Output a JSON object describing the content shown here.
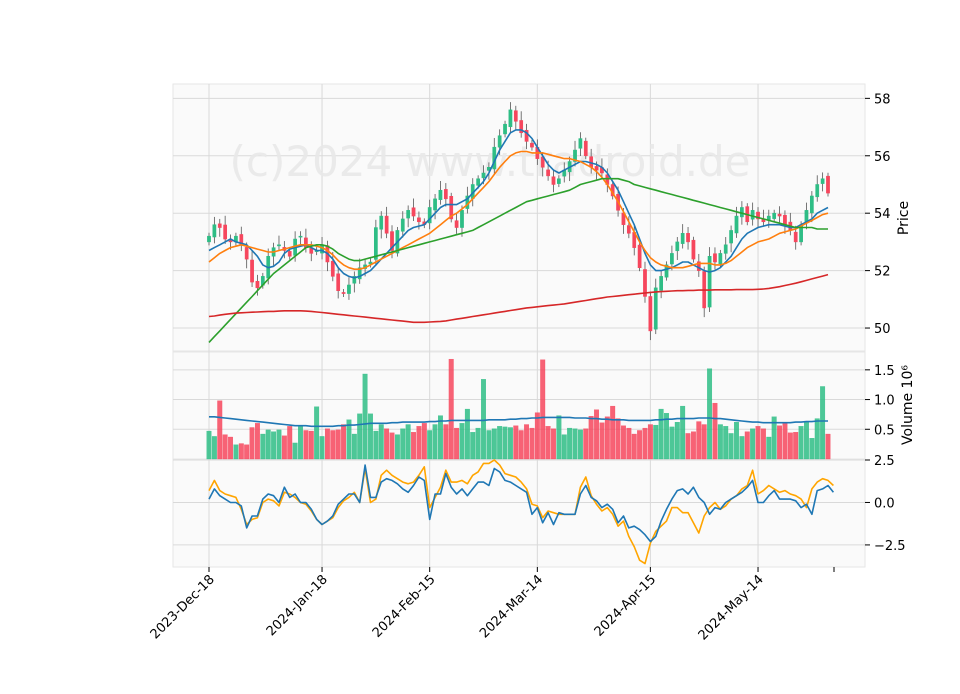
{
  "watermark": "(c)2024 www.tradroid.de",
  "colors": {
    "up": "#26a69a",
    "up_candle": "#2ebd85",
    "down": "#ef5350",
    "down_candle": "#f6465d",
    "sma_short": "#1f77b4",
    "sma_mid": "#ff7f0e",
    "sma_long": "#2ca02c",
    "sma_200": "#d62728",
    "macd": "#1f77b4",
    "signal": "#ffa500",
    "vol_ma": "#1f77b4"
  },
  "chart_data": [
    {
      "type": "candlestick",
      "panel": "price",
      "ylabel": "Price",
      "ylim": [
        49.2,
        58.5
      ],
      "yticks": [
        "50",
        "52",
        "54",
        "56",
        "58"
      ],
      "grid": true,
      "x_tick_labels": [
        "2023-Dec-18",
        "2024-Jan-18",
        "2024-Feb-15",
        "2024-Mar-14",
        "2024-Apr-15",
        "2024-May-14"
      ],
      "x_tick_index": [
        0,
        21,
        41,
        61,
        82,
        102
      ],
      "closes": [
        53.2,
        53.6,
        53.5,
        53.1,
        53.0,
        53.2,
        52.9,
        52.4,
        51.6,
        51.4,
        51.8,
        52.5,
        52.8,
        52.9,
        52.7,
        52.5,
        53.1,
        53.2,
        52.8,
        52.6,
        52.7,
        52.9,
        52.3,
        51.8,
        51.3,
        51.2,
        51.5,
        51.8,
        52.1,
        52.2,
        52.3,
        53.5,
        53.9,
        53.3,
        52.7,
        53.4,
        53.8,
        54.1,
        53.9,
        53.7,
        53.6,
        54.2,
        54.5,
        54.8,
        54.5,
        53.8,
        53.5,
        54.1,
        54.6,
        55.0,
        55.2,
        55.4,
        55.6,
        56.3,
        56.7,
        57.1,
        57.6,
        57.2,
        56.8,
        56.5,
        56.3,
        55.9,
        55.6,
        55.3,
        55.0,
        55.2,
        55.5,
        55.8,
        56.2,
        56.6,
        56.0,
        55.6,
        55.5,
        55.4,
        55.0,
        54.6,
        54.1,
        53.6,
        53.3,
        52.8,
        52.1,
        51.1,
        49.9,
        51.4,
        51.8,
        52.2,
        52.6,
        53.0,
        53.3,
        53.0,
        52.4,
        52.0,
        50.7,
        52.5,
        52.3,
        52.6,
        52.9,
        53.4,
        53.9,
        54.2,
        53.7,
        54.1,
        53.8,
        53.7,
        53.9,
        54.0,
        53.9,
        53.6,
        53.4,
        53.0,
        53.6,
        54.1,
        54.6,
        55.0,
        55.2,
        54.7
      ],
      "series": [
        {
          "name": "",
          "values": [
            52.7,
            52.8,
            52.9,
            53.0,
            53.1,
            53.0,
            52.95,
            52.9,
            52.7,
            52.5,
            52.2,
            52.1,
            52.15,
            52.3,
            52.6,
            52.75,
            52.8,
            52.85,
            52.9,
            52.8,
            52.7,
            52.7,
            52.6,
            52.4,
            52.1,
            51.9,
            51.8,
            51.75,
            51.8,
            51.9,
            52.0,
            52.2,
            52.4,
            52.6,
            52.8,
            53.0,
            53.2,
            53.4,
            53.5,
            53.55,
            53.6,
            53.8,
            54.0,
            54.2,
            54.3,
            54.3,
            54.3,
            54.4,
            54.5,
            54.7,
            54.9,
            55.1,
            55.4,
            55.8,
            56.2,
            56.5,
            56.8,
            56.9,
            56.9,
            56.8,
            56.6,
            56.3,
            56.0,
            55.7,
            55.5,
            55.4,
            55.5,
            55.6,
            55.7,
            55.8,
            55.8,
            55.75,
            55.7,
            55.6,
            55.4,
            55.1,
            54.8,
            54.4,
            54.0,
            53.6,
            53.1,
            52.6,
            52.2,
            52.0,
            52.0,
            52.05,
            52.1,
            52.2,
            52.3,
            52.3,
            52.2,
            52.1,
            52.0,
            51.95,
            52.0,
            52.1,
            52.3,
            52.5,
            52.8,
            53.1,
            53.3,
            53.4,
            53.5,
            53.55,
            53.6,
            53.6,
            53.6,
            53.55,
            53.5,
            53.5,
            53.6,
            53.7,
            53.8,
            54.0,
            54.1,
            54.2
          ]
        },
        {
          "name": "",
          "values": [
            52.3,
            52.45,
            52.6,
            52.7,
            52.8,
            52.85,
            52.9,
            52.85,
            52.8,
            52.75,
            52.7,
            52.65,
            52.65,
            52.7,
            52.75,
            52.8,
            52.85,
            52.9,
            52.9,
            52.9,
            52.85,
            52.8,
            52.7,
            52.55,
            52.35,
            52.2,
            52.1,
            52.05,
            52.05,
            52.1,
            52.2,
            52.3,
            52.4,
            52.5,
            52.6,
            52.7,
            52.8,
            52.9,
            53.0,
            53.1,
            53.2,
            53.3,
            53.45,
            53.6,
            53.75,
            53.9,
            54.0,
            54.15,
            54.3,
            54.5,
            54.7,
            54.9,
            55.1,
            55.35,
            55.6,
            55.8,
            56.0,
            56.1,
            56.15,
            56.15,
            56.1,
            56.1,
            56.1,
            56.05,
            56.0,
            55.95,
            55.9,
            55.9,
            55.85,
            55.8,
            55.7,
            55.6,
            55.45,
            55.25,
            55.0,
            54.7,
            54.4,
            54.05,
            53.7,
            53.35,
            53.0,
            52.7,
            52.45,
            52.3,
            52.2,
            52.15,
            52.1,
            52.1,
            52.1,
            52.15,
            52.2,
            52.25,
            52.25,
            52.25,
            52.2,
            52.2,
            52.25,
            52.35,
            52.5,
            52.65,
            52.8,
            52.9,
            53.0,
            53.05,
            53.1,
            53.2,
            53.3,
            53.35,
            53.4,
            53.45,
            53.55,
            53.65,
            53.75,
            53.85,
            53.95,
            54.0
          ]
        },
        {
          "name": "",
          "values": [
            49.5,
            49.7,
            49.9,
            50.1,
            50.3,
            50.5,
            50.7,
            50.9,
            51.1,
            51.3,
            51.5,
            51.7,
            51.9,
            52.05,
            52.2,
            52.35,
            52.5,
            52.65,
            52.8,
            52.85,
            52.9,
            52.9,
            52.85,
            52.75,
            52.6,
            52.5,
            52.4,
            52.35,
            52.35,
            52.4,
            52.45,
            52.5,
            52.55,
            52.6,
            52.65,
            52.7,
            52.75,
            52.8,
            52.85,
            52.9,
            52.95,
            53.0,
            53.05,
            53.1,
            53.15,
            53.2,
            53.25,
            53.3,
            53.35,
            53.4,
            53.5,
            53.6,
            53.7,
            53.8,
            53.9,
            54.0,
            54.1,
            54.2,
            54.3,
            54.4,
            54.45,
            54.5,
            54.55,
            54.6,
            54.65,
            54.7,
            54.75,
            54.8,
            54.9,
            55.0,
            55.05,
            55.1,
            55.15,
            55.2,
            55.2,
            55.2,
            55.2,
            55.15,
            55.1,
            55.0,
            54.95,
            54.9,
            54.85,
            54.8,
            54.75,
            54.7,
            54.65,
            54.6,
            54.55,
            54.5,
            54.45,
            54.4,
            54.35,
            54.3,
            54.25,
            54.2,
            54.15,
            54.1,
            54.05,
            54.0,
            53.95,
            53.9,
            53.85,
            53.8,
            53.75,
            53.7,
            53.65,
            53.6,
            53.55,
            53.5,
            53.5,
            53.5,
            53.5,
            53.45,
            53.45,
            53.45
          ]
        },
        {
          "name": "",
          "values": [
            50.4,
            50.42,
            50.45,
            50.48,
            50.5,
            50.52,
            50.53,
            50.54,
            50.55,
            50.56,
            50.57,
            50.58,
            50.58,
            50.59,
            50.6,
            50.6,
            50.6,
            50.6,
            50.59,
            50.58,
            50.56,
            50.54,
            50.52,
            50.5,
            50.48,
            50.46,
            50.44,
            50.42,
            50.4,
            50.38,
            50.36,
            50.34,
            50.32,
            50.3,
            50.28,
            50.26,
            50.24,
            50.22,
            50.2,
            50.2,
            50.2,
            50.21,
            50.22,
            50.23,
            50.25,
            50.28,
            50.31,
            50.34,
            50.37,
            50.4,
            50.43,
            50.46,
            50.49,
            50.52,
            50.55,
            50.58,
            50.61,
            50.64,
            50.67,
            50.7,
            50.72,
            50.74,
            50.76,
            50.78,
            50.8,
            50.82,
            50.84,
            50.87,
            50.9,
            50.93,
            50.96,
            50.99,
            51.02,
            51.05,
            51.08,
            51.1,
            51.12,
            51.14,
            51.16,
            51.18,
            51.2,
            51.22,
            51.24,
            51.26,
            51.27,
            51.28,
            51.29,
            51.3,
            51.3,
            51.31,
            51.31,
            51.32,
            51.32,
            51.32,
            51.33,
            51.33,
            51.33,
            51.33,
            51.34,
            51.34,
            51.34,
            51.34,
            51.35,
            51.36,
            51.38,
            51.41,
            51.44,
            51.48,
            51.52,
            51.56,
            51.61,
            51.66,
            51.71,
            51.76,
            51.81,
            51.86
          ]
        }
      ]
    },
    {
      "type": "bar",
      "panel": "volume",
      "ylabel": "Volume  10⁶",
      "ylim": [
        0,
        1.8
      ],
      "yticks": [
        "0.5",
        "1.0",
        "1.5"
      ],
      "grid": true,
      "values": [
        0.47,
        0.38,
        0.98,
        0.41,
        0.37,
        0.24,
        0.26,
        0.24,
        0.53,
        0.6,
        0.42,
        0.49,
        0.46,
        0.49,
        0.39,
        0.55,
        0.27,
        0.55,
        0.48,
        0.47,
        0.88,
        0.38,
        0.51,
        0.48,
        0.49,
        0.58,
        0.66,
        0.42,
        0.76,
        1.43,
        0.76,
        0.47,
        0.58,
        0.51,
        0.44,
        0.41,
        0.51,
        0.58,
        0.45,
        0.55,
        0.6,
        0.48,
        0.58,
        0.73,
        0.58,
        1.68,
        0.52,
        0.6,
        0.84,
        0.45,
        0.52,
        1.34,
        0.48,
        0.51,
        0.55,
        0.54,
        0.53,
        0.56,
        0.48,
        0.58,
        0.52,
        0.78,
        1.67,
        0.55,
        0.51,
        0.73,
        0.41,
        0.52,
        0.51,
        0.49,
        0.51,
        0.72,
        0.83,
        0.61,
        0.71,
        0.89,
        0.68,
        0.56,
        0.52,
        0.42,
        0.48,
        0.52,
        0.58,
        0.57,
        0.84,
        0.77,
        0.54,
        0.62,
        0.89,
        0.43,
        0.46,
        0.63,
        0.58,
        1.52,
        0.94,
        0.58,
        0.55,
        0.43,
        0.62,
        0.38,
        0.46,
        0.51,
        0.55,
        0.51,
        0.37,
        0.71,
        0.56,
        0.61,
        0.44,
        0.45,
        0.55,
        0.63,
        0.35,
        0.68,
        1.22,
        0.42
      ],
      "series": [
        {
          "name": "",
          "values": [
            0.71,
            0.71,
            0.7,
            0.69,
            0.68,
            0.67,
            0.66,
            0.65,
            0.64,
            0.63,
            0.62,
            0.61,
            0.6,
            0.59,
            0.58,
            0.57,
            0.56,
            0.56,
            0.56,
            0.55,
            0.55,
            0.55,
            0.55,
            0.55,
            0.56,
            0.56,
            0.57,
            0.57,
            0.58,
            0.59,
            0.6,
            0.6,
            0.6,
            0.6,
            0.61,
            0.61,
            0.62,
            0.62,
            0.62,
            0.62,
            0.62,
            0.63,
            0.63,
            0.64,
            0.64,
            0.65,
            0.65,
            0.65,
            0.65,
            0.65,
            0.65,
            0.65,
            0.66,
            0.66,
            0.66,
            0.66,
            0.67,
            0.67,
            0.68,
            0.68,
            0.69,
            0.69,
            0.7,
            0.7,
            0.7,
            0.7,
            0.7,
            0.7,
            0.69,
            0.69,
            0.69,
            0.68,
            0.68,
            0.67,
            0.67,
            0.66,
            0.66,
            0.66,
            0.65,
            0.65,
            0.65,
            0.65,
            0.65,
            0.66,
            0.66,
            0.67,
            0.67,
            0.68,
            0.68,
            0.68,
            0.68,
            0.69,
            0.69,
            0.69,
            0.68,
            0.68,
            0.67,
            0.66,
            0.65,
            0.64,
            0.63,
            0.62,
            0.62,
            0.61,
            0.61,
            0.61,
            0.61,
            0.61,
            0.61,
            0.62,
            0.62,
            0.63,
            0.63,
            0.64,
            0.64,
            0.64
          ]
        }
      ]
    },
    {
      "type": "line",
      "panel": "indicator",
      "ylim": [
        -3.8,
        2.5
      ],
      "yticks": [
        "2.5",
        "0.0",
        "−2.5"
      ],
      "grid": true,
      "series": [
        {
          "name": "",
          "values": [
            0.2,
            0.8,
            0.4,
            0.2,
            0.0,
            0.0,
            -0.2,
            -1.5,
            -0.8,
            -0.8,
            0.2,
            0.5,
            0.4,
            0.0,
            0.9,
            0.3,
            0.5,
            0.0,
            0.0,
            -0.4,
            -1.0,
            -1.3,
            -1.1,
            -0.8,
            -0.1,
            0.2,
            0.5,
            0.5,
            0.0,
            2.2,
            0.3,
            0.3,
            1.2,
            1.4,
            1.3,
            1.1,
            0.8,
            0.6,
            1.0,
            1.5,
            1.3,
            -1.0,
            0.5,
            0.5,
            1.7,
            0.9,
            0.5,
            0.8,
            0.4,
            0.8,
            1.2,
            1.2,
            1.0,
            2.0,
            1.8,
            1.3,
            1.2,
            1.0,
            0.8,
            0.6,
            -0.7,
            -0.3,
            -1.2,
            -0.6,
            -1.3,
            -0.6,
            -0.7,
            -0.7,
            -0.7,
            0.5,
            1.0,
            0.3,
            0.1,
            -0.3,
            -0.1,
            -0.4,
            -1.2,
            -0.8,
            -1.5,
            -1.4,
            -1.6,
            -1.9,
            -2.3,
            -2.0,
            -1.1,
            -0.4,
            0.2,
            0.7,
            0.8,
            0.5,
            0.9,
            0.3,
            0.0,
            -0.7,
            -0.3,
            -0.4,
            0.0,
            0.2,
            0.4,
            0.6,
            0.9,
            1.3,
            0.0,
            0.0,
            0.4,
            0.7,
            0.2,
            0.2,
            0.2,
            0.1,
            -0.3,
            -0.1,
            -0.7,
            0.7,
            0.8,
            1.0,
            0.6
          ]
        },
        {
          "name": "",
          "values": [
            0.7,
            1.3,
            0.7,
            0.5,
            0.4,
            0.3,
            -0.4,
            -1.3,
            -1.0,
            -0.9,
            0.0,
            0.2,
            0.1,
            -0.2,
            0.6,
            0.5,
            0.3,
            0.0,
            -0.1,
            -0.5,
            -1.0,
            -1.3,
            -1.1,
            -0.9,
            -0.3,
            0.1,
            0.3,
            0.6,
            0.0,
            2.0,
            0.0,
            0.2,
            1.6,
            1.9,
            1.6,
            1.4,
            1.2,
            1.1,
            1.2,
            1.6,
            2.1,
            -0.3,
            0.3,
            0.9,
            1.9,
            1.2,
            1.2,
            1.3,
            1.1,
            1.6,
            1.8,
            2.3,
            2.3,
            2.5,
            2.2,
            1.7,
            1.6,
            1.5,
            1.2,
            0.8,
            -0.1,
            -0.2,
            -0.9,
            -0.5,
            -0.6,
            -0.7,
            -0.7,
            -0.7,
            -0.7,
            0.9,
            1.5,
            0.4,
            -0.1,
            -0.5,
            -0.3,
            -0.7,
            -1.4,
            -1.1,
            -2.0,
            -2.6,
            -3.4,
            -3.6,
            -2.4,
            -1.7,
            -1.4,
            -1.1,
            -0.3,
            -0.3,
            -0.6,
            -0.6,
            -1.2,
            -1.8,
            -0.8,
            -0.3,
            0.0,
            -0.4,
            -0.2,
            0.2,
            0.4,
            0.8,
            1.0,
            1.9,
            0.5,
            0.7,
            1.0,
            0.8,
            0.6,
            0.7,
            0.5,
            0.4,
            0.2,
            -0.3,
            0.8,
            1.2,
            1.4,
            1.3,
            1.0
          ]
        }
      ]
    }
  ]
}
